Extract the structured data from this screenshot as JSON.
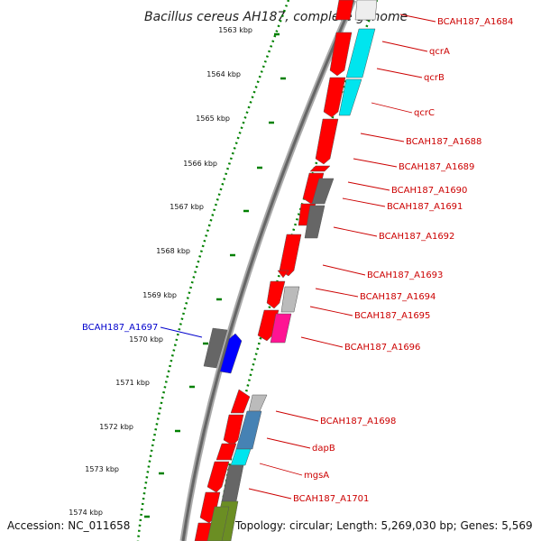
{
  "title": "Bacillus cereus AH187, complete genome",
  "ticks": [
    "1563 kbp",
    "1564 kbp",
    "1565 kbp",
    "1566 kbp",
    "1567 kbp",
    "1568 kbp",
    "1569 kbp",
    "1570 kbp",
    "1571 kbp",
    "1572 kbp",
    "1573 kbp",
    "1574 kbp"
  ],
  "genes_right": [
    "BCAH187_A1684",
    "qcrA",
    "qcrB",
    "qcrC",
    "BCAH187_A1688",
    "BCAH187_A1689",
    "BCAH187_A1690",
    "BCAH187_A1691",
    "BCAH187_A1692",
    "BCAH187_A1693",
    "BCAH187_A1694",
    "BCAH187_A1695",
    "BCAH187_A1696",
    "BCAH187_A1698",
    "dapB",
    "mgsA",
    "BCAH187_A1701"
  ],
  "genes_left": [
    "BCAH187_A1697"
  ],
  "footer": {
    "accession": "Accession: NC_011658",
    "info": "Topology: circular; Length: 5,269,030 bp; Genes: 5,569"
  },
  "colors": {
    "forward": "#ff0000",
    "cyan": "#00e5ee",
    "dark_gray": "#666666",
    "light_gray": "#bbbbbb",
    "magenta": "#ff1493",
    "blue": "#0000ff",
    "steel_blue": "#4682b4",
    "olive": "#6b8e23",
    "tick_green": "#008000",
    "label_red": "#cc0000",
    "label_blue": "#0000cc"
  }
}
